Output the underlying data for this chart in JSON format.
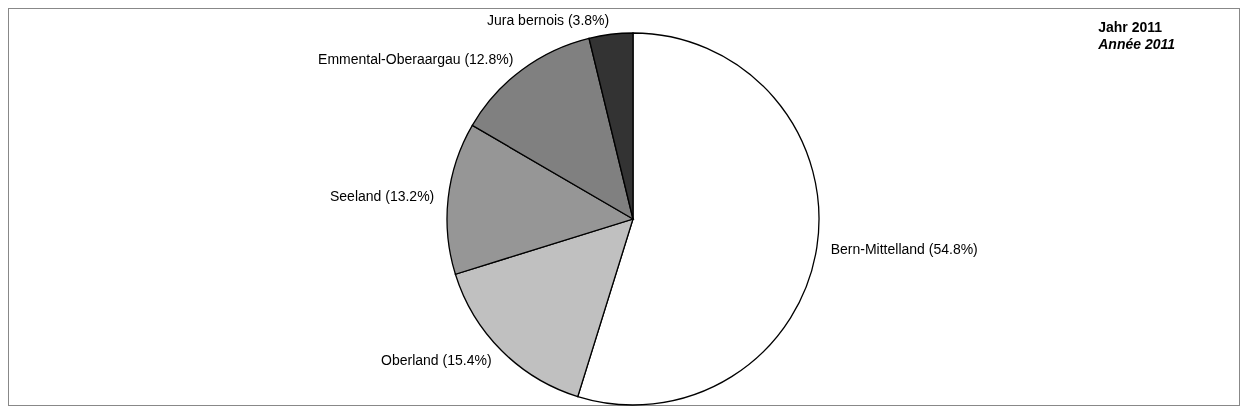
{
  "chart_data": {
    "type": "pie",
    "title": "Jahr 2011",
    "subtitle": "Année 2011",
    "categories": [
      "Bern-Mittelland (54.8%)",
      "Oberland (15.4%)",
      "Seeland (13.2%)",
      "Emmental-Oberaargau (12.8%)",
      "Jura bernois (3.8%)"
    ],
    "values": [
      54.8,
      15.4,
      13.2,
      12.8,
      3.8
    ],
    "colors": [
      "#ffffff",
      "#c0c0c0",
      "#969696",
      "#808080",
      "#333333"
    ]
  }
}
